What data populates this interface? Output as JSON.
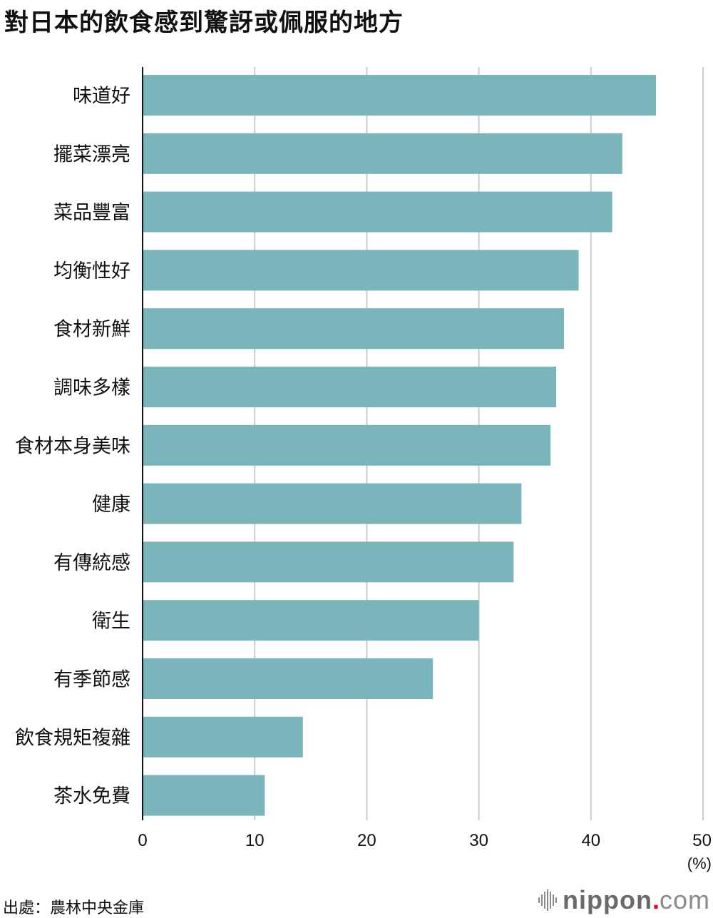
{
  "chart_data": {
    "type": "bar",
    "orientation": "horizontal",
    "title": "對日本的飲食感到驚訝或佩服的地方",
    "categories": [
      "味道好",
      "擺菜漂亮",
      "菜品豐富",
      "均衡性好",
      "食材新鮮",
      "調味多樣",
      "食材本身美味",
      "健康",
      "有傳統感",
      "衛生",
      "有季節感",
      "飲食規矩複雜",
      "茶水免費"
    ],
    "values": [
      45.8,
      42.8,
      41.9,
      38.9,
      37.6,
      36.9,
      36.4,
      33.8,
      33.1,
      30.0,
      25.9,
      14.3,
      10.9
    ],
    "xlim": [
      0,
      50
    ],
    "xticks": [
      0,
      10,
      20,
      30,
      40,
      50
    ],
    "xunit": "(%)",
    "grid": true,
    "bar_color": "#7ab5bb",
    "grid_color": "#cccccc",
    "axis_color": "#111111"
  },
  "source": "出處：農林中央金庫",
  "brand": {
    "name": "nippon",
    "dot": ".",
    "tld": "com",
    "icon": "nippon-waveform-icon"
  }
}
